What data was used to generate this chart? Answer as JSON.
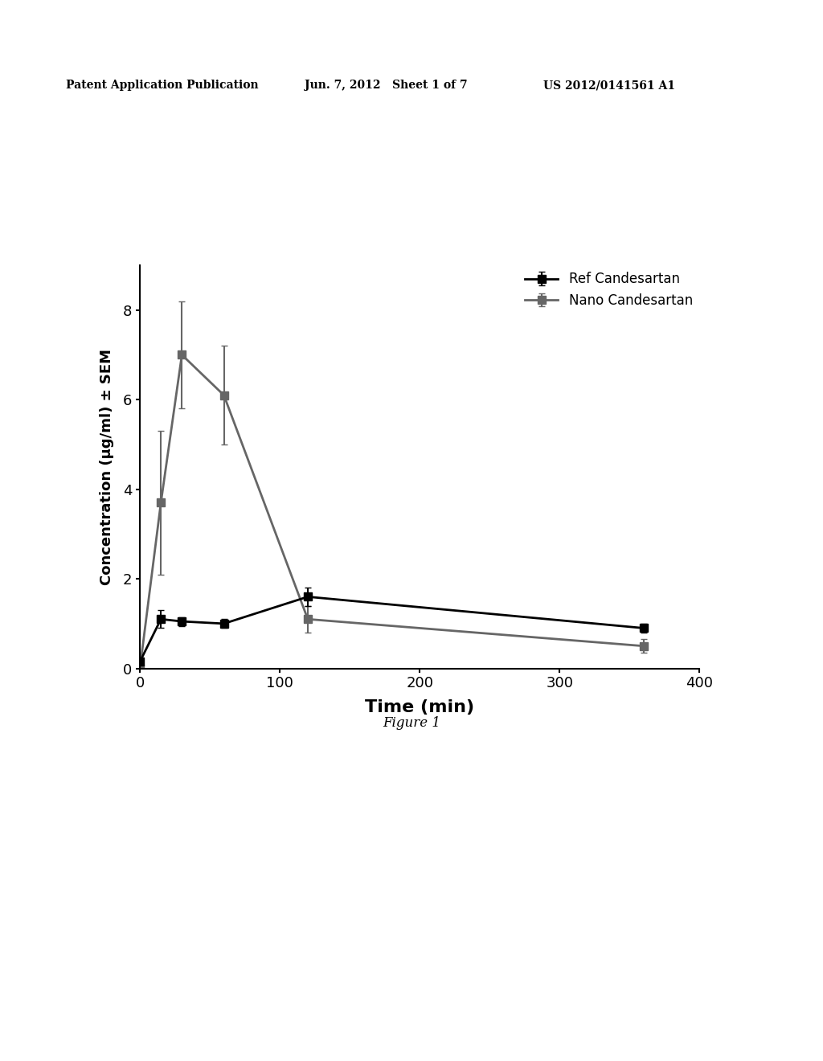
{
  "ref_x": [
    0,
    15,
    30,
    60,
    120,
    360
  ],
  "ref_y": [
    0.15,
    1.1,
    1.05,
    1.0,
    1.6,
    0.9
  ],
  "ref_yerr": [
    0.0,
    0.2,
    0.1,
    0.1,
    0.2,
    0.1
  ],
  "nano_x": [
    0,
    15,
    30,
    60,
    120,
    360
  ],
  "nano_y": [
    0.0,
    3.7,
    7.0,
    6.1,
    1.1,
    0.5
  ],
  "nano_yerr": [
    0.0,
    1.6,
    1.2,
    1.1,
    0.3,
    0.15
  ],
  "ref_color": "#000000",
  "nano_color": "#666666",
  "xlabel": "Time (min)",
  "ylabel": "Concentration (μg/ml) ± SEM",
  "xlim": [
    0,
    400
  ],
  "ylim": [
    0,
    9
  ],
  "yticks": [
    0,
    2,
    4,
    6,
    8
  ],
  "xticks": [
    0,
    100,
    200,
    300,
    400
  ],
  "legend_ref": "Ref Candesartan",
  "legend_nano": "Nano Candesartan",
  "figure_label": "Figure 1",
  "header_left": "Patent Application Publication",
  "header_mid": "Jun. 7, 2012   Sheet 1 of 7",
  "header_right": "US 2012/0141561 A1"
}
